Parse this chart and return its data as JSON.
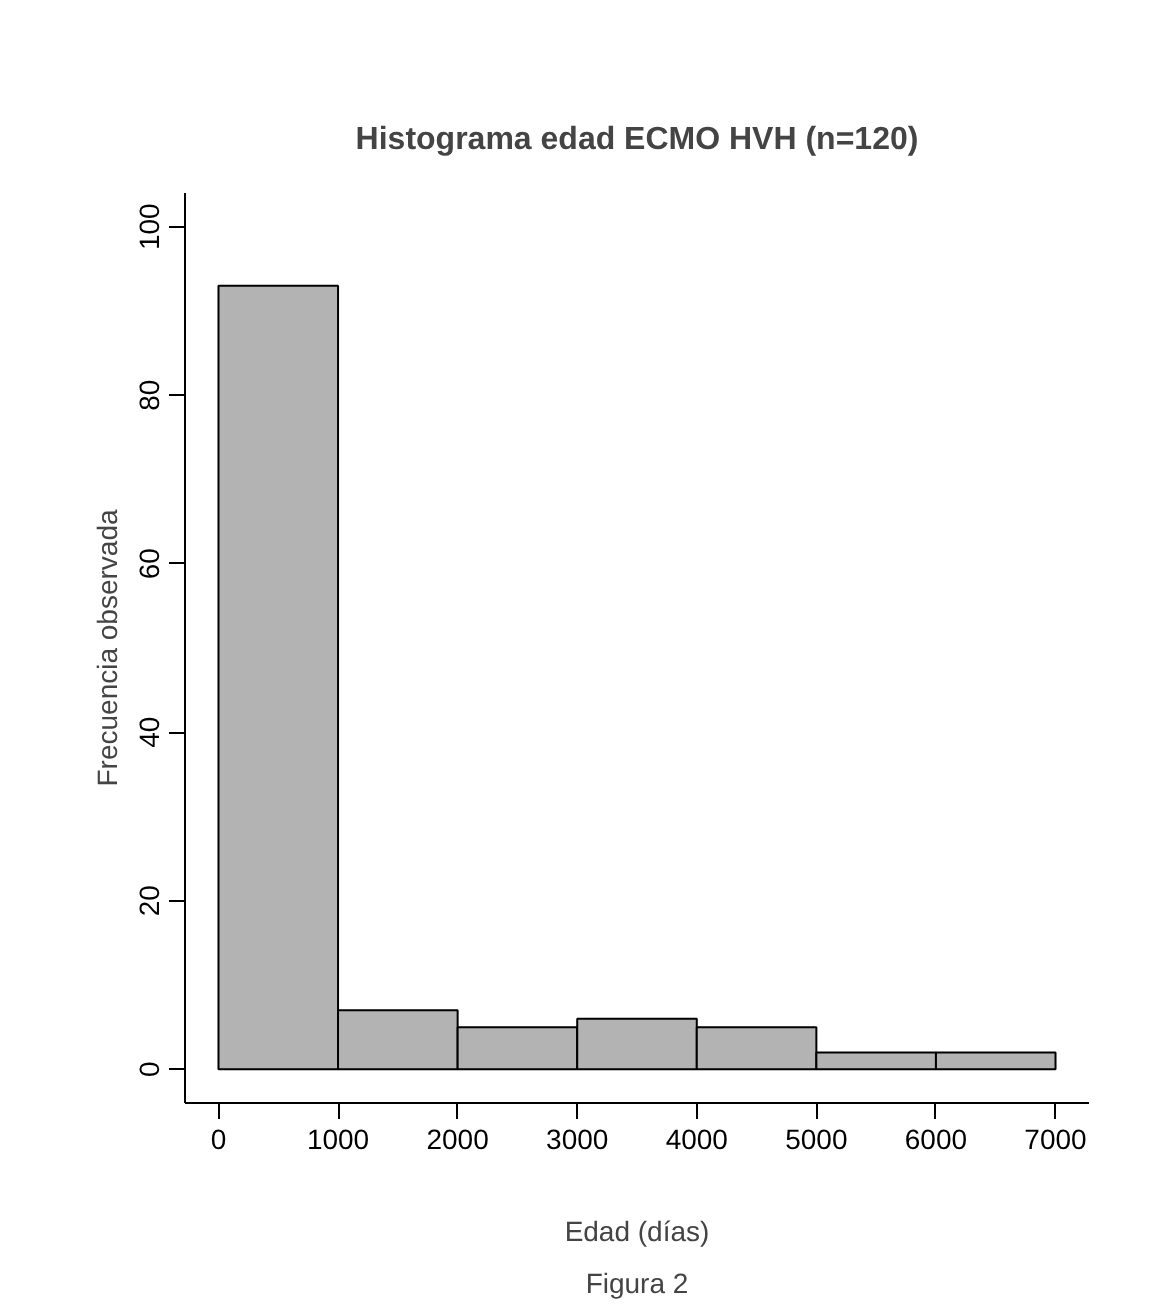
{
  "chart_data": {
    "type": "histogram",
    "title": "Histograma edad ECMO HVH (n=120)",
    "xlabel": "Edad (días)",
    "ylabel": "Frecuencia observada",
    "annotations": [
      "Figura 2"
    ],
    "bins": [
      0,
      1000,
      2000,
      3000,
      4000,
      5000,
      6000,
      7000
    ],
    "values": [
      93,
      7,
      5,
      6,
      5,
      2,
      2
    ],
    "color": "#b3b3b3",
    "xlim": [
      -280,
      7280
    ],
    "ylim": [
      -4,
      104
    ],
    "xticks": [
      0,
      1000,
      2000,
      3000,
      4000,
      5000,
      6000,
      7000
    ],
    "yticks": [
      0,
      20,
      40,
      60,
      80,
      100
    ],
    "grid": false
  }
}
